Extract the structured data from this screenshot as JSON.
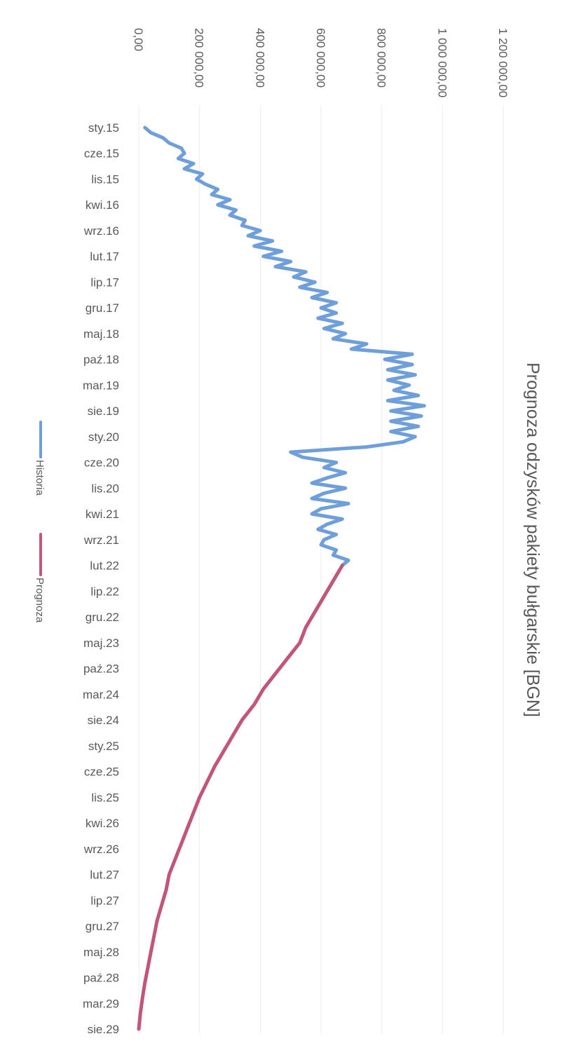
{
  "chart_data": {
    "type": "line",
    "title": "Prognoza odzysków pakiety bułgarskie [BGN]",
    "xlabel": "",
    "ylabel": "",
    "orientation": "rotated 90° clockwise",
    "x_tick_labels": [
      "sty.15",
      "cze.15",
      "lis.15",
      "kwi.16",
      "wrz.16",
      "lut.17",
      "lip.17",
      "gru.17",
      "maj.18",
      "paź.18",
      "mar.19",
      "sie.19",
      "sty.20",
      "cze.20",
      "lis.20",
      "kwi.21",
      "wrz.21",
      "lut.22",
      "lip.22",
      "gru.22",
      "maj.23",
      "paź.23",
      "mar.24",
      "sie.24",
      "sty.25",
      "cze.25",
      "lis.25",
      "kwi.26",
      "wrz.26",
      "lut.27",
      "lip.27",
      "gru.27",
      "maj.28",
      "paź.28",
      "mar.29",
      "sie.29"
    ],
    "y_tick_labels": [
      "0,00",
      "200 000,00",
      "400 000,00",
      "600 000,00",
      "800 000,00",
      "1 000 000,00",
      "1 200 000,00"
    ],
    "y_ticks": [
      0,
      200000,
      400000,
      600000,
      800000,
      1000000,
      1200000
    ],
    "ylim": [
      0,
      1200000
    ],
    "x_range": [
      "2015-01",
      "2029-08"
    ],
    "grid": "vertical major gridlines",
    "legend_position": "bottom",
    "series": [
      {
        "name": "Historia",
        "color": "#6f9fdb",
        "points": [
          [
            "2015-01",
            20000
          ],
          [
            "2015-02",
            40000
          ],
          [
            "2015-03",
            80000
          ],
          [
            "2015-04",
            100000
          ],
          [
            "2015-05",
            140000
          ],
          [
            "2015-06",
            150000
          ],
          [
            "2015-07",
            130000
          ],
          [
            "2015-08",
            180000
          ],
          [
            "2015-09",
            150000
          ],
          [
            "2015-10",
            210000
          ],
          [
            "2015-11",
            190000
          ],
          [
            "2015-12",
            220000
          ],
          [
            "2016-01",
            260000
          ],
          [
            "2016-02",
            240000
          ],
          [
            "2016-03",
            300000
          ],
          [
            "2016-04",
            260000
          ],
          [
            "2016-05",
            320000
          ],
          [
            "2016-06",
            300000
          ],
          [
            "2016-07",
            350000
          ],
          [
            "2016-08",
            340000
          ],
          [
            "2016-09",
            400000
          ],
          [
            "2016-10",
            360000
          ],
          [
            "2016-11",
            440000
          ],
          [
            "2016-12",
            380000
          ],
          [
            "2017-01",
            470000
          ],
          [
            "2017-02",
            410000
          ],
          [
            "2017-03",
            500000
          ],
          [
            "2017-04",
            450000
          ],
          [
            "2017-05",
            550000
          ],
          [
            "2017-06",
            510000
          ],
          [
            "2017-07",
            580000
          ],
          [
            "2017-08",
            530000
          ],
          [
            "2017-09",
            620000
          ],
          [
            "2017-10",
            570000
          ],
          [
            "2017-11",
            650000
          ],
          [
            "2017-12",
            600000
          ],
          [
            "2018-01",
            650000
          ],
          [
            "2018-02",
            590000
          ],
          [
            "2018-03",
            670000
          ],
          [
            "2018-04",
            610000
          ],
          [
            "2018-05",
            680000
          ],
          [
            "2018-06",
            640000
          ],
          [
            "2018-07",
            750000
          ],
          [
            "2018-08",
            700000
          ],
          [
            "2018-09",
            900000
          ],
          [
            "2018-10",
            810000
          ],
          [
            "2018-11",
            900000
          ],
          [
            "2018-12",
            820000
          ],
          [
            "2019-01",
            910000
          ],
          [
            "2019-02",
            820000
          ],
          [
            "2019-03",
            890000
          ],
          [
            "2019-04",
            840000
          ],
          [
            "2019-05",
            920000
          ],
          [
            "2019-06",
            820000
          ],
          [
            "2019-07",
            940000
          ],
          [
            "2019-08",
            830000
          ],
          [
            "2019-09",
            930000
          ],
          [
            "2019-10",
            830000
          ],
          [
            "2019-11",
            920000
          ],
          [
            "2019-12",
            830000
          ],
          [
            "2020-01",
            910000
          ],
          [
            "2020-02",
            870000
          ],
          [
            "2020-03",
            750000
          ],
          [
            "2020-04",
            500000
          ],
          [
            "2020-05",
            540000
          ],
          [
            "2020-06",
            650000
          ],
          [
            "2020-07",
            610000
          ],
          [
            "2020-08",
            680000
          ],
          [
            "2020-09",
            620000
          ],
          [
            "2020-10",
            570000
          ],
          [
            "2020-11",
            680000
          ],
          [
            "2020-12",
            610000
          ],
          [
            "2021-01",
            570000
          ],
          [
            "2021-02",
            690000
          ],
          [
            "2021-03",
            600000
          ],
          [
            "2021-04",
            570000
          ],
          [
            "2021-05",
            670000
          ],
          [
            "2021-06",
            620000
          ],
          [
            "2021-07",
            590000
          ],
          [
            "2021-08",
            650000
          ],
          [
            "2021-09",
            610000
          ],
          [
            "2021-10",
            600000
          ],
          [
            "2021-11",
            650000
          ],
          [
            "2021-12",
            640000
          ],
          [
            "2022-01",
            690000
          ],
          [
            "2022-02",
            670000
          ]
        ]
      },
      {
        "name": "Prognoza",
        "color": "#c2557a",
        "points": [
          [
            "2022-02",
            670000
          ],
          [
            "2022-05",
            640000
          ],
          [
            "2022-08",
            610000
          ],
          [
            "2022-11",
            580000
          ],
          [
            "2023-02",
            550000
          ],
          [
            "2023-05",
            530000
          ],
          [
            "2023-08",
            490000
          ],
          [
            "2023-11",
            450000
          ],
          [
            "2024-02",
            410000
          ],
          [
            "2024-05",
            380000
          ],
          [
            "2024-08",
            340000
          ],
          [
            "2024-11",
            310000
          ],
          [
            "2025-02",
            280000
          ],
          [
            "2025-05",
            250000
          ],
          [
            "2025-08",
            225000
          ],
          [
            "2025-11",
            200000
          ],
          [
            "2026-02",
            180000
          ],
          [
            "2026-05",
            160000
          ],
          [
            "2026-08",
            140000
          ],
          [
            "2026-11",
            120000
          ],
          [
            "2027-02",
            100000
          ],
          [
            "2027-05",
            90000
          ],
          [
            "2027-08",
            75000
          ],
          [
            "2027-11",
            60000
          ],
          [
            "2028-02",
            50000
          ],
          [
            "2028-05",
            40000
          ],
          [
            "2028-08",
            30000
          ],
          [
            "2028-11",
            20000
          ],
          [
            "2029-02",
            12000
          ],
          [
            "2029-05",
            5000
          ],
          [
            "2029-08",
            0
          ]
        ]
      }
    ]
  }
}
